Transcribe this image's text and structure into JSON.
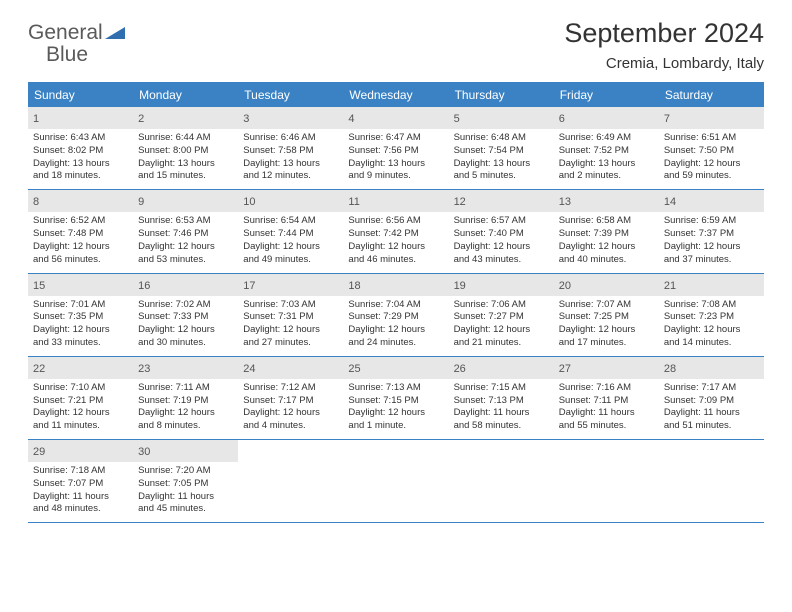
{
  "logo": {
    "part1": "General",
    "part2": "Blue"
  },
  "title": "September 2024",
  "location": "Cremia, Lombardy, Italy",
  "colors": {
    "header_bar": "#3a82c4",
    "daynum_bg": "#e7e7e7",
    "text": "#333333",
    "logo_gray": "#5a5a5a",
    "logo_blue": "#2f6fb0"
  },
  "weekdays": [
    "Sunday",
    "Monday",
    "Tuesday",
    "Wednesday",
    "Thursday",
    "Friday",
    "Saturday"
  ],
  "weeks": [
    [
      {
        "n": "1",
        "sr": "Sunrise: 6:43 AM",
        "ss": "Sunset: 8:02 PM",
        "d1": "Daylight: 13 hours",
        "d2": "and 18 minutes."
      },
      {
        "n": "2",
        "sr": "Sunrise: 6:44 AM",
        "ss": "Sunset: 8:00 PM",
        "d1": "Daylight: 13 hours",
        "d2": "and 15 minutes."
      },
      {
        "n": "3",
        "sr": "Sunrise: 6:46 AM",
        "ss": "Sunset: 7:58 PM",
        "d1": "Daylight: 13 hours",
        "d2": "and 12 minutes."
      },
      {
        "n": "4",
        "sr": "Sunrise: 6:47 AM",
        "ss": "Sunset: 7:56 PM",
        "d1": "Daylight: 13 hours",
        "d2": "and 9 minutes."
      },
      {
        "n": "5",
        "sr": "Sunrise: 6:48 AM",
        "ss": "Sunset: 7:54 PM",
        "d1": "Daylight: 13 hours",
        "d2": "and 5 minutes."
      },
      {
        "n": "6",
        "sr": "Sunrise: 6:49 AM",
        "ss": "Sunset: 7:52 PM",
        "d1": "Daylight: 13 hours",
        "d2": "and 2 minutes."
      },
      {
        "n": "7",
        "sr": "Sunrise: 6:51 AM",
        "ss": "Sunset: 7:50 PM",
        "d1": "Daylight: 12 hours",
        "d2": "and 59 minutes."
      }
    ],
    [
      {
        "n": "8",
        "sr": "Sunrise: 6:52 AM",
        "ss": "Sunset: 7:48 PM",
        "d1": "Daylight: 12 hours",
        "d2": "and 56 minutes."
      },
      {
        "n": "9",
        "sr": "Sunrise: 6:53 AM",
        "ss": "Sunset: 7:46 PM",
        "d1": "Daylight: 12 hours",
        "d2": "and 53 minutes."
      },
      {
        "n": "10",
        "sr": "Sunrise: 6:54 AM",
        "ss": "Sunset: 7:44 PM",
        "d1": "Daylight: 12 hours",
        "d2": "and 49 minutes."
      },
      {
        "n": "11",
        "sr": "Sunrise: 6:56 AM",
        "ss": "Sunset: 7:42 PM",
        "d1": "Daylight: 12 hours",
        "d2": "and 46 minutes."
      },
      {
        "n": "12",
        "sr": "Sunrise: 6:57 AM",
        "ss": "Sunset: 7:40 PM",
        "d1": "Daylight: 12 hours",
        "d2": "and 43 minutes."
      },
      {
        "n": "13",
        "sr": "Sunrise: 6:58 AM",
        "ss": "Sunset: 7:39 PM",
        "d1": "Daylight: 12 hours",
        "d2": "and 40 minutes."
      },
      {
        "n": "14",
        "sr": "Sunrise: 6:59 AM",
        "ss": "Sunset: 7:37 PM",
        "d1": "Daylight: 12 hours",
        "d2": "and 37 minutes."
      }
    ],
    [
      {
        "n": "15",
        "sr": "Sunrise: 7:01 AM",
        "ss": "Sunset: 7:35 PM",
        "d1": "Daylight: 12 hours",
        "d2": "and 33 minutes."
      },
      {
        "n": "16",
        "sr": "Sunrise: 7:02 AM",
        "ss": "Sunset: 7:33 PM",
        "d1": "Daylight: 12 hours",
        "d2": "and 30 minutes."
      },
      {
        "n": "17",
        "sr": "Sunrise: 7:03 AM",
        "ss": "Sunset: 7:31 PM",
        "d1": "Daylight: 12 hours",
        "d2": "and 27 minutes."
      },
      {
        "n": "18",
        "sr": "Sunrise: 7:04 AM",
        "ss": "Sunset: 7:29 PM",
        "d1": "Daylight: 12 hours",
        "d2": "and 24 minutes."
      },
      {
        "n": "19",
        "sr": "Sunrise: 7:06 AM",
        "ss": "Sunset: 7:27 PM",
        "d1": "Daylight: 12 hours",
        "d2": "and 21 minutes."
      },
      {
        "n": "20",
        "sr": "Sunrise: 7:07 AM",
        "ss": "Sunset: 7:25 PM",
        "d1": "Daylight: 12 hours",
        "d2": "and 17 minutes."
      },
      {
        "n": "21",
        "sr": "Sunrise: 7:08 AM",
        "ss": "Sunset: 7:23 PM",
        "d1": "Daylight: 12 hours",
        "d2": "and 14 minutes."
      }
    ],
    [
      {
        "n": "22",
        "sr": "Sunrise: 7:10 AM",
        "ss": "Sunset: 7:21 PM",
        "d1": "Daylight: 12 hours",
        "d2": "and 11 minutes."
      },
      {
        "n": "23",
        "sr": "Sunrise: 7:11 AM",
        "ss": "Sunset: 7:19 PM",
        "d1": "Daylight: 12 hours",
        "d2": "and 8 minutes."
      },
      {
        "n": "24",
        "sr": "Sunrise: 7:12 AM",
        "ss": "Sunset: 7:17 PM",
        "d1": "Daylight: 12 hours",
        "d2": "and 4 minutes."
      },
      {
        "n": "25",
        "sr": "Sunrise: 7:13 AM",
        "ss": "Sunset: 7:15 PM",
        "d1": "Daylight: 12 hours",
        "d2": "and 1 minute."
      },
      {
        "n": "26",
        "sr": "Sunrise: 7:15 AM",
        "ss": "Sunset: 7:13 PM",
        "d1": "Daylight: 11 hours",
        "d2": "and 58 minutes."
      },
      {
        "n": "27",
        "sr": "Sunrise: 7:16 AM",
        "ss": "Sunset: 7:11 PM",
        "d1": "Daylight: 11 hours",
        "d2": "and 55 minutes."
      },
      {
        "n": "28",
        "sr": "Sunrise: 7:17 AM",
        "ss": "Sunset: 7:09 PM",
        "d1": "Daylight: 11 hours",
        "d2": "and 51 minutes."
      }
    ],
    [
      {
        "n": "29",
        "sr": "Sunrise: 7:18 AM",
        "ss": "Sunset: 7:07 PM",
        "d1": "Daylight: 11 hours",
        "d2": "and 48 minutes."
      },
      {
        "n": "30",
        "sr": "Sunrise: 7:20 AM",
        "ss": "Sunset: 7:05 PM",
        "d1": "Daylight: 11 hours",
        "d2": "and 45 minutes."
      },
      null,
      null,
      null,
      null,
      null
    ]
  ]
}
